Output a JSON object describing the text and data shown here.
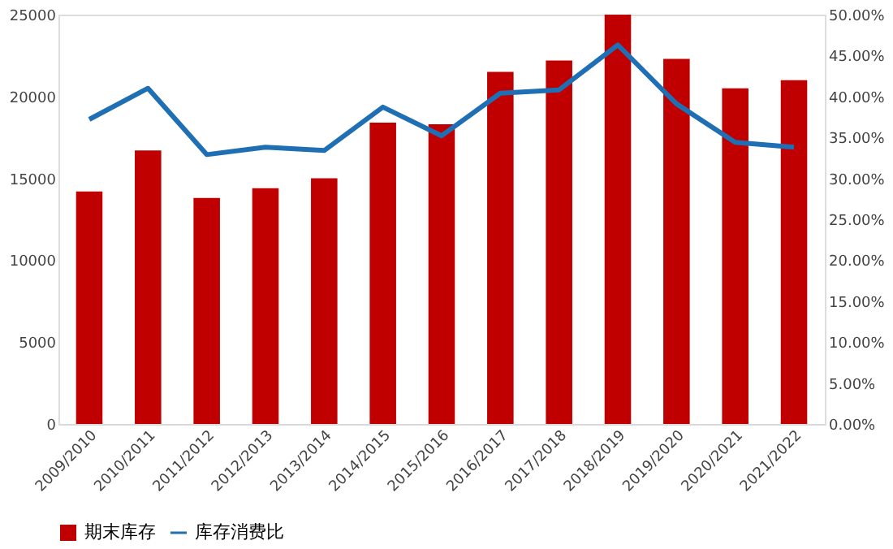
{
  "chart_data": {
    "type": "bar",
    "categories": [
      "2009/2010",
      "2010/2011",
      "2011/2012",
      "2012/2013",
      "2013/2014",
      "2014/2015",
      "2015/2016",
      "2016/2017",
      "2017/2018",
      "2018/2019",
      "2019/2020",
      "2020/2021",
      "2021/2022"
    ],
    "series": [
      {
        "name": "期末库存",
        "color": "#c00000",
        "values": [
          14200,
          16700,
          13800,
          14400,
          15000,
          18400,
          18300,
          21500,
          22200,
          25000,
          22300,
          20500,
          21000
        ]
      },
      {
        "name": "库存消费比",
        "type": "line",
        "axis": "y2",
        "color": "#1f6fb4",
        "values": [
          37.2,
          41.0,
          32.9,
          33.8,
          33.4,
          38.7,
          35.2,
          40.4,
          40.8,
          46.3,
          39.1,
          34.4,
          33.8
        ]
      }
    ],
    "ylim": [
      0,
      25000
    ],
    "yticks": [
      0,
      5000,
      10000,
      15000,
      20000,
      25000
    ],
    "y2lim": [
      0,
      50
    ],
    "y2ticks": [
      {
        "value": 0,
        "label": "0.00%"
      },
      {
        "value": 5,
        "label": "5.00%"
      },
      {
        "value": 10,
        "label": "10.00%"
      },
      {
        "value": 15,
        "label": "15.00%"
      },
      {
        "value": 20,
        "label": "20.00%"
      },
      {
        "value": 25,
        "label": "25.00%"
      },
      {
        "value": 30,
        "label": "30.00%"
      },
      {
        "value": 35,
        "label": "35.00%"
      },
      {
        "value": 40,
        "label": "40.00%"
      },
      {
        "value": 45,
        "label": "45.00%"
      },
      {
        "value": 50,
        "label": "50.00%"
      }
    ],
    "grid": false,
    "legend": "bottom",
    "marker": "none",
    "line_style": "solid"
  }
}
